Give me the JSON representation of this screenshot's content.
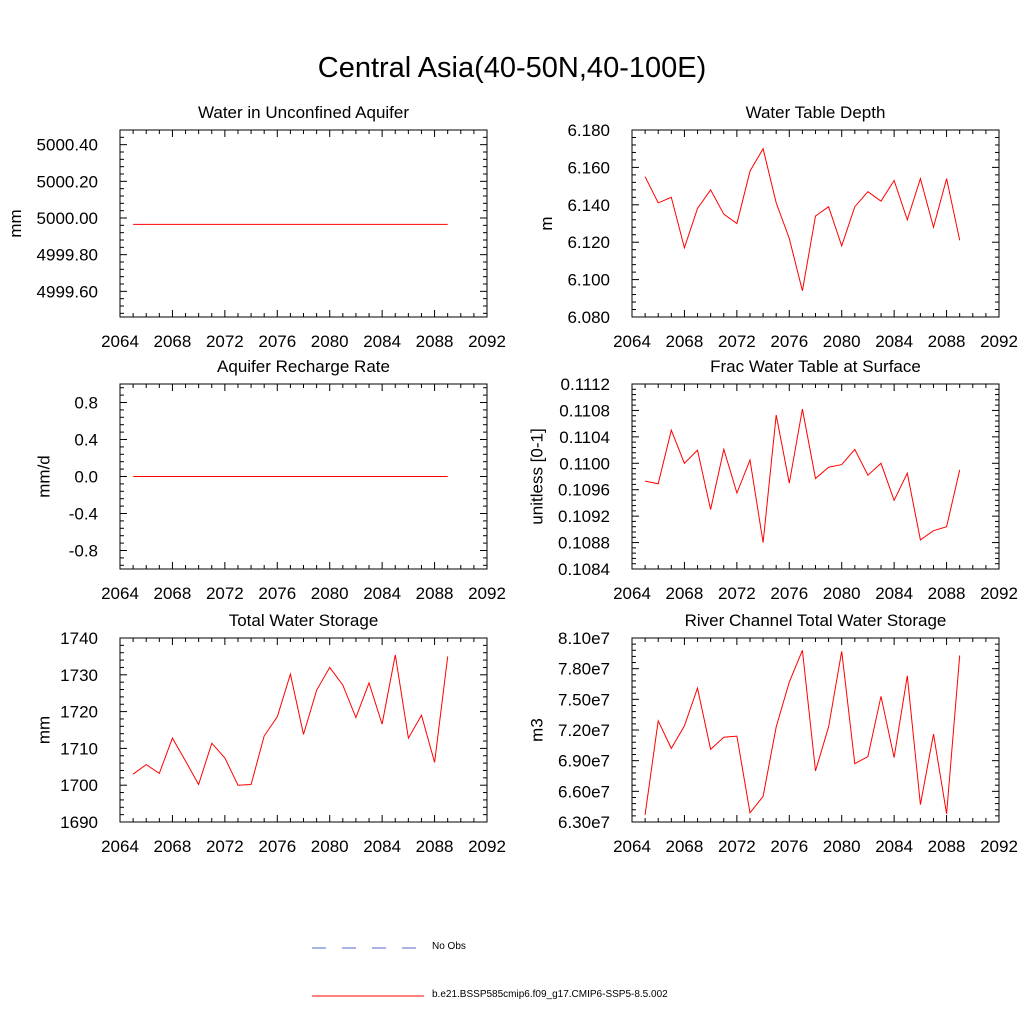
{
  "figure_title": "Central Asia(40-50N,40-100E)",
  "legend": {
    "obs_label": "No Obs",
    "obs_color": "#5566cc",
    "model_label": "b.e21.BSSP585cmip6.f09_g17.CMIP6-SSP5-8.5.002",
    "model_color": "#ff0000"
  },
  "chart_data": [
    {
      "type": "line",
      "title": "Water in Unconfined Aquifer",
      "ylabel": "mm",
      "xlim": [
        2064,
        2092
      ],
      "ylim": [
        4999.46,
        5000.48
      ],
      "xticks": [
        2064,
        2068,
        2072,
        2076,
        2080,
        2084,
        2088,
        2092
      ],
      "yticks": [
        4999.6,
        4999.8,
        5000.0,
        5000.2,
        5000.4
      ],
      "ytick_labels": [
        "4999.60",
        "4999.80",
        "5000.00",
        "5000.20",
        "5000.40"
      ],
      "x": [
        2065,
        2066,
        2067,
        2068,
        2069,
        2070,
        2071,
        2072,
        2073,
        2074,
        2075,
        2076,
        2077,
        2078,
        2079,
        2080,
        2081,
        2082,
        2083,
        2084,
        2085,
        2086,
        2087,
        2088,
        2089
      ],
      "series": [
        {
          "color": "#ff0000",
          "values": [
            4999.965,
            4999.965,
            4999.965,
            4999.965,
            4999.965,
            4999.965,
            4999.965,
            4999.965,
            4999.965,
            4999.965,
            4999.965,
            4999.965,
            4999.965,
            4999.965,
            4999.965,
            4999.965,
            4999.965,
            4999.965,
            4999.965,
            4999.965,
            4999.965,
            4999.965,
            4999.965,
            4999.965,
            4999.965
          ]
        }
      ]
    },
    {
      "type": "line",
      "title": "Water Table Depth",
      "ylabel": "m",
      "xlim": [
        2064,
        2092
      ],
      "ylim": [
        6.08,
        6.18
      ],
      "xticks": [
        2064,
        2068,
        2072,
        2076,
        2080,
        2084,
        2088,
        2092
      ],
      "yticks": [
        6.08,
        6.1,
        6.12,
        6.14,
        6.16,
        6.18
      ],
      "ytick_labels": [
        "6.080",
        "6.100",
        "6.120",
        "6.140",
        "6.160",
        "6.180"
      ],
      "x": [
        2065,
        2066,
        2067,
        2068,
        2069,
        2070,
        2071,
        2072,
        2073,
        2074,
        2075,
        2076,
        2077,
        2078,
        2079,
        2080,
        2081,
        2082,
        2083,
        2084,
        2085,
        2086,
        2087,
        2088,
        2089
      ],
      "series": [
        {
          "color": "#ff0000",
          "values": [
            6.155,
            6.141,
            6.144,
            6.117,
            6.138,
            6.148,
            6.135,
            6.13,
            6.158,
            6.17,
            6.141,
            6.122,
            6.094,
            6.134,
            6.139,
            6.118,
            6.139,
            6.147,
            6.142,
            6.153,
            6.132,
            6.154,
            6.128,
            6.154,
            6.121
          ]
        }
      ]
    },
    {
      "type": "line",
      "title": "Aquifer Recharge Rate",
      "ylabel": "mm/d",
      "xlim": [
        2064,
        2092
      ],
      "ylim": [
        -1.0,
        1.0
      ],
      "xticks": [
        2064,
        2068,
        2072,
        2076,
        2080,
        2084,
        2088,
        2092
      ],
      "yticks": [
        -0.8,
        -0.4,
        0.0,
        0.4,
        0.8
      ],
      "ytick_labels": [
        "-0.8",
        "-0.4",
        "0.0",
        "0.4",
        "0.8"
      ],
      "x": [
        2065,
        2066,
        2067,
        2068,
        2069,
        2070,
        2071,
        2072,
        2073,
        2074,
        2075,
        2076,
        2077,
        2078,
        2079,
        2080,
        2081,
        2082,
        2083,
        2084,
        2085,
        2086,
        2087,
        2088,
        2089
      ],
      "series": [
        {
          "color": "#ff0000",
          "values": [
            0.0,
            0.0,
            0.0,
            0.0,
            0.0,
            0.0,
            0.0,
            0.0,
            0.0,
            0.0,
            0.0,
            0.0,
            0.0,
            0.0,
            0.0,
            0.0,
            0.0,
            0.0,
            0.0,
            0.0,
            0.0,
            0.0,
            0.0,
            0.0,
            0.0
          ]
        }
      ]
    },
    {
      "type": "line",
      "title": "Frac Water Table at Surface",
      "ylabel": "unitless [0-1]",
      "xlim": [
        2064,
        2092
      ],
      "ylim": [
        0.1084,
        0.1112
      ],
      "xticks": [
        2064,
        2068,
        2072,
        2076,
        2080,
        2084,
        2088,
        2092
      ],
      "yticks": [
        0.1084,
        0.1088,
        0.1092,
        0.1096,
        0.11,
        0.1104,
        0.1108,
        0.1112
      ],
      "ytick_labels": [
        "0.1084",
        "0.1088",
        "0.1092",
        "0.1096",
        "0.1100",
        "0.1104",
        "0.1108",
        "0.1112"
      ],
      "x": [
        2065,
        2066,
        2067,
        2068,
        2069,
        2070,
        2071,
        2072,
        2073,
        2074,
        2075,
        2076,
        2077,
        2078,
        2079,
        2080,
        2081,
        2082,
        2083,
        2084,
        2085,
        2086,
        2087,
        2088,
        2089
      ],
      "series": [
        {
          "color": "#ff0000",
          "values": [
            0.10973,
            0.10969,
            0.1105,
            0.11,
            0.1102,
            0.1093,
            0.11021,
            0.10955,
            0.11005,
            0.1088,
            0.11073,
            0.1097,
            0.11082,
            0.10977,
            0.10994,
            0.10998,
            0.11021,
            0.10982,
            0.11,
            0.10944,
            0.10985,
            0.10884,
            0.10898,
            0.10904,
            0.1099
          ]
        }
      ]
    },
    {
      "type": "line",
      "title": "Total Water Storage",
      "ylabel": "mm",
      "xlim": [
        2064,
        2092
      ],
      "ylim": [
        1690,
        1740
      ],
      "xticks": [
        2064,
        2068,
        2072,
        2076,
        2080,
        2084,
        2088,
        2092
      ],
      "yticks": [
        1690,
        1700,
        1710,
        1720,
        1730,
        1740
      ],
      "ytick_labels": [
        "1690",
        "1700",
        "1710",
        "1720",
        "1730",
        "1740"
      ],
      "x": [
        2065,
        2066,
        2067,
        2068,
        2069,
        2070,
        2071,
        2072,
        2073,
        2074,
        2075,
        2076,
        2077,
        2078,
        2079,
        2080,
        2081,
        2082,
        2083,
        2084,
        2085,
        2086,
        2087,
        2088,
        2089
      ],
      "series": [
        {
          "color": "#ff0000",
          "values": [
            1703.0,
            1705.6,
            1703.2,
            1712.8,
            1706.6,
            1700.2,
            1711.4,
            1707.4,
            1700.0,
            1700.2,
            1713.4,
            1718.6,
            1730.2,
            1713.8,
            1725.8,
            1732.0,
            1727.2,
            1718.4,
            1727.8,
            1716.6,
            1735.4,
            1712.8,
            1719.0,
            1706.2,
            1735.0
          ]
        }
      ]
    },
    {
      "type": "line",
      "title": "River Channel Total Water Storage",
      "ylabel": "m3",
      "xlim": [
        2064,
        2092
      ],
      "ylim": [
        63000000.0,
        81000000.0
      ],
      "xticks": [
        2064,
        2068,
        2072,
        2076,
        2080,
        2084,
        2088,
        2092
      ],
      "yticks": [
        63000000.0,
        66000000.0,
        69000000.0,
        72000000.0,
        75000000.0,
        78000000.0,
        81000000.0
      ],
      "ytick_labels": [
        "6.30e7",
        "6.60e7",
        "6.90e7",
        "7.20e7",
        "7.50e7",
        "7.80e7",
        "8.10e7"
      ],
      "x": [
        2065,
        2066,
        2067,
        2068,
        2069,
        2070,
        2071,
        2072,
        2073,
        2074,
        2075,
        2076,
        2077,
        2078,
        2079,
        2080,
        2081,
        2082,
        2083,
        2084,
        2085,
        2086,
        2087,
        2088,
        2089
      ],
      "series": [
        {
          "color": "#ff0000",
          "values": [
            63700000,
            72900000,
            70200000,
            72400000,
            76100000,
            70100000,
            71300000,
            71400000,
            63900000,
            65500000,
            72300000,
            76700000,
            79800000,
            68000000,
            72300000,
            79700000,
            68700000,
            69400000,
            75300000,
            69300000,
            77300000,
            64700000,
            71600000,
            63800000,
            79300000
          ]
        }
      ]
    }
  ]
}
